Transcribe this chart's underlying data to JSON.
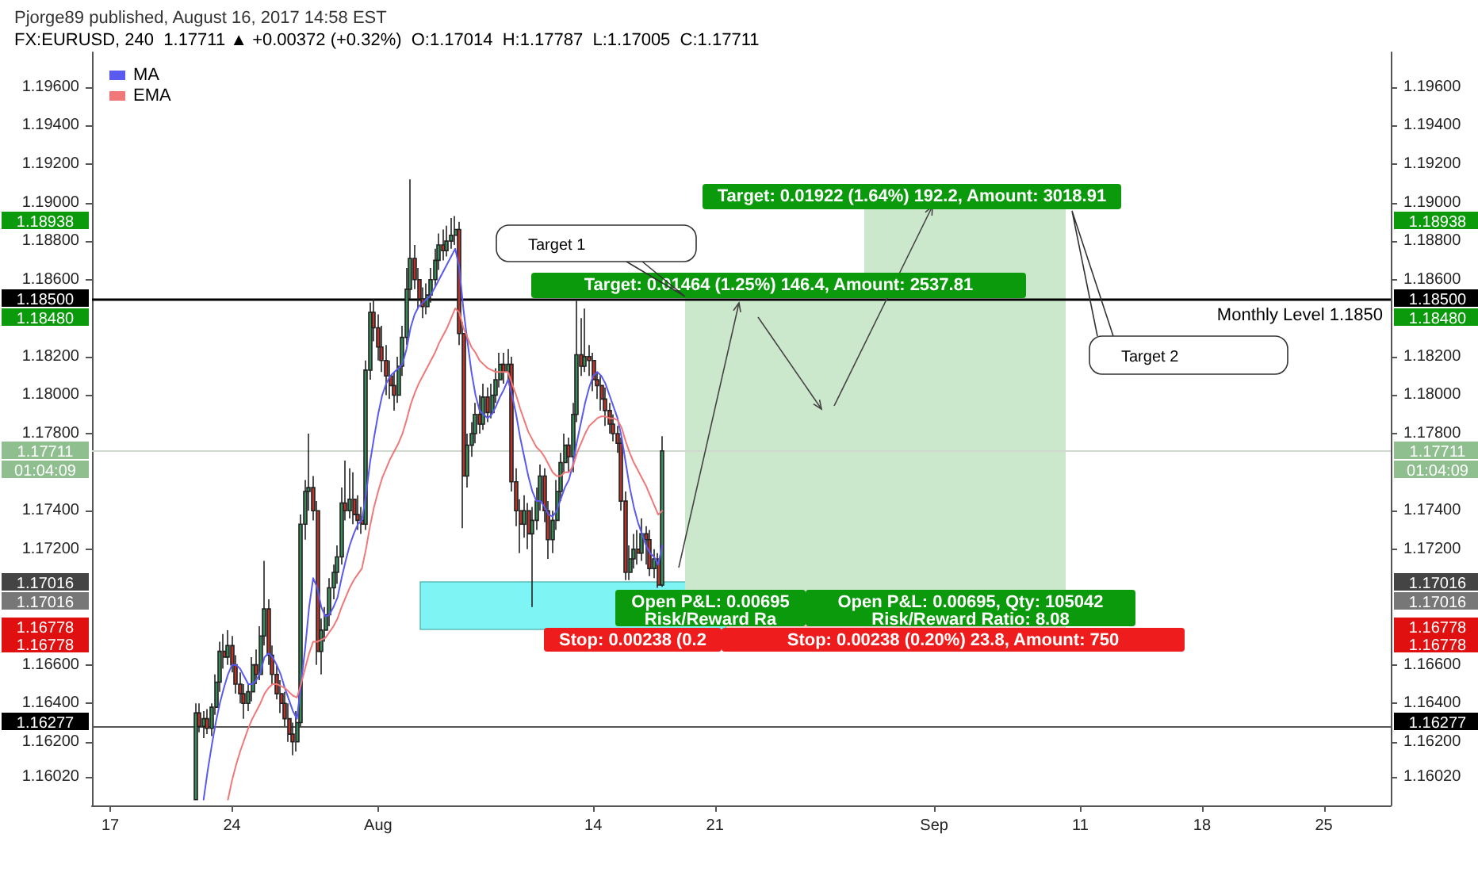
{
  "chart_data": {
    "type": "candlestick",
    "title": "Pjorge89 published, August 16, 2017 14:58 EST",
    "subtitle": "FX:EURUSD, 240  1.17711 ▲ +0.00372 (+0.32%)  O:1.17014  H:1.17787  L:1.17005  C:1.17711",
    "categories": [
      null,
      null,
      null,
      null,
      "17",
      null,
      null,
      null,
      null,
      null,
      null,
      null,
      null,
      null,
      null,
      null,
      null,
      null,
      null,
      null,
      null,
      null,
      null,
      null,
      null,
      null,
      null,
      null,
      null,
      null,
      null,
      null,
      null,
      null,
      "24",
      null,
      null,
      null,
      null,
      null,
      null,
      null,
      null,
      null,
      null,
      null,
      null,
      null,
      null,
      null,
      null,
      null,
      null,
      null,
      null,
      null,
      null,
      null,
      null,
      null,
      null,
      null,
      null,
      null,
      null,
      null,
      null,
      null,
      null,
      null,
      "Aug",
      null,
      null,
      null,
      null,
      null,
      null,
      null,
      null,
      null,
      null,
      null,
      null,
      null,
      null,
      null,
      null,
      null,
      null,
      null,
      null,
      null,
      null,
      null,
      null,
      null,
      null,
      null,
      null,
      null,
      null,
      null,
      null,
      null,
      null,
      null,
      null,
      null,
      null,
      null,
      null,
      null,
      null,
      null,
      null,
      null,
      null,
      null,
      null,
      null,
      null,
      null,
      null,
      "14",
      null,
      null,
      null,
      null,
      null,
      null,
      null,
      null,
      null,
      null,
      null,
      null,
      null,
      null,
      null,
      null,
      null,
      null,
      null,
      null,
      null,
      null,
      null,
      null,
      null,
      null,
      null,
      null,
      null,
      "21",
      null,
      null,
      null,
      null,
      null,
      null,
      null,
      null,
      null,
      null,
      null,
      null,
      null,
      null,
      null,
      null,
      null,
      null,
      null,
      null,
      null,
      null,
      null,
      null,
      null,
      null,
      null,
      null,
      null,
      null,
      null,
      null,
      null,
      null,
      null,
      null,
      null,
      null,
      null,
      null,
      null,
      null,
      null,
      null,
      null,
      null,
      null,
      null,
      null,
      null,
      null,
      null,
      null,
      "Sep",
      null,
      null,
      null,
      null,
      null,
      null,
      null,
      null,
      null,
      null,
      null,
      null,
      null,
      null,
      null,
      null,
      null,
      null,
      null,
      null,
      null,
      null,
      null,
      null,
      null,
      null,
      null,
      null,
      null,
      null,
      null,
      null,
      null,
      null,
      null,
      "11",
      null,
      null,
      null,
      null,
      null,
      null,
      null,
      null,
      null,
      null,
      null,
      null,
      null,
      null,
      null,
      null,
      null,
      null,
      null,
      null,
      null,
      null,
      null,
      null,
      null,
      null,
      null,
      null,
      null,
      "18",
      null,
      null,
      null,
      null,
      null,
      null,
      null,
      null,
      null,
      null,
      null,
      null,
      null,
      null,
      null,
      null,
      null,
      null,
      null,
      null,
      null,
      null,
      null,
      null,
      null,
      null,
      null,
      null,
      null,
      "25",
      null,
      null,
      null,
      null,
      null,
      null,
      null,
      null,
      null,
      null,
      null,
      null,
      null,
      null,
      null,
      null
    ],
    "ohlc": [
      null,
      null,
      null,
      null,
      null,
      null,
      null,
      null,
      null,
      null,
      null,
      null,
      null,
      null,
      null,
      null,
      null,
      null,
      null,
      null,
      null,
      null,
      null,
      null,
      null,
      [
        1.159,
        1.164,
        1.159,
        1.1635
      ],
      [
        1.1635,
        1.164,
        1.1625,
        1.1628
      ],
      [
        1.1628,
        1.1636,
        1.1622,
        1.1632
      ],
      [
        1.1632,
        1.1637,
        1.1624,
        1.1627
      ],
      [
        1.1627,
        1.164,
        1.1623,
        1.1638
      ],
      [
        1.1638,
        1.1655,
        1.1634,
        1.1651
      ],
      [
        1.1651,
        1.1672,
        1.1646,
        1.1667
      ],
      [
        1.1667,
        1.1676,
        1.1658,
        1.1664
      ],
      [
        1.1664,
        1.1678,
        1.166,
        1.167
      ],
      [
        1.167,
        1.1675,
        1.1656,
        1.166
      ],
      [
        1.166,
        1.1665,
        1.1645,
        1.165
      ],
      [
        1.165,
        1.1656,
        1.164,
        1.1645
      ],
      [
        1.1645,
        1.165,
        1.1632,
        1.164
      ],
      [
        1.164,
        1.165,
        1.1636,
        1.1646
      ],
      [
        1.1646,
        1.1664,
        1.1641,
        1.166
      ],
      [
        1.166,
        1.1668,
        1.165,
        1.1655
      ],
      [
        1.1655,
        1.168,
        1.1652,
        1.1675
      ],
      [
        1.1675,
        1.1714,
        1.167,
        1.1689
      ],
      [
        1.1689,
        1.1694,
        1.166,
        1.1665
      ],
      [
        1.1665,
        1.167,
        1.165,
        1.1655
      ],
      [
        1.1655,
        1.166,
        1.1642,
        1.1645
      ],
      [
        1.1645,
        1.1652,
        1.1635,
        1.164
      ],
      [
        1.164,
        1.1646,
        1.1628,
        1.1632
      ],
      [
        1.1632,
        1.164,
        1.162,
        1.1624
      ],
      [
        1.1624,
        1.163,
        1.1613,
        1.162
      ],
      [
        1.162,
        1.1636,
        1.1615,
        1.163
      ],
      [
        1.163,
        1.1738,
        1.1628,
        1.1733
      ],
      [
        1.1733,
        1.1756,
        1.1725,
        1.175
      ],
      [
        1.175,
        1.178,
        1.174,
        1.1752
      ],
      [
        1.1752,
        1.1758,
        1.1735,
        1.174
      ],
      [
        1.174,
        1.1745,
        1.166,
        1.1667
      ],
      [
        1.1667,
        1.1684,
        1.1655,
        1.1678
      ],
      [
        1.1678,
        1.169,
        1.1672,
        1.1686
      ],
      [
        1.1686,
        1.1705,
        1.168,
        1.17
      ],
      [
        1.17,
        1.1712,
        1.1694,
        1.1708
      ],
      [
        1.1708,
        1.1722,
        1.1702,
        1.1716
      ],
      [
        1.1716,
        1.1752,
        1.1712,
        1.1744
      ],
      [
        1.1744,
        1.1766,
        1.1735,
        1.174
      ],
      [
        1.174,
        1.1762,
        1.1736,
        1.1746
      ],
      [
        1.1746,
        1.176,
        1.1733,
        1.1738
      ],
      [
        1.1738,
        1.1748,
        1.173,
        1.1735
      ],
      [
        1.1735,
        1.1742,
        1.1728,
        1.1733
      ],
      [
        1.1733,
        1.1818,
        1.173,
        1.1813
      ],
      [
        1.1813,
        1.1848,
        1.1808,
        1.1843
      ],
      [
        1.1843,
        1.185,
        1.1828,
        1.1835
      ],
      [
        1.1835,
        1.1842,
        1.1818,
        1.1825
      ],
      [
        1.1825,
        1.1836,
        1.1812,
        1.1818
      ],
      [
        1.1818,
        1.1826,
        1.18,
        1.181
      ],
      [
        1.181,
        1.1818,
        1.1798,
        1.1805
      ],
      [
        1.1805,
        1.1812,
        1.1792,
        1.18
      ],
      [
        1.18,
        1.182,
        1.1796,
        1.1815
      ],
      [
        1.1815,
        1.1836,
        1.181,
        1.183
      ],
      [
        1.183,
        1.1866,
        1.1826,
        1.1855
      ],
      [
        1.1855,
        1.1912,
        1.185,
        1.1871
      ],
      [
        1.1871,
        1.1878,
        1.1855,
        1.186
      ],
      [
        1.186,
        1.1866,
        1.1845,
        1.185
      ],
      [
        1.185,
        1.1856,
        1.184,
        1.1846
      ],
      [
        1.1846,
        1.1858,
        1.1842,
        1.1852
      ],
      [
        1.1852,
        1.1866,
        1.1848,
        1.186
      ],
      [
        1.186,
        1.1876,
        1.1856,
        1.187
      ],
      [
        1.187,
        1.1884,
        1.1865,
        1.1878
      ],
      [
        1.1878,
        1.1886,
        1.187,
        1.1875
      ],
      [
        1.1875,
        1.1888,
        1.1872,
        1.188
      ],
      [
        1.188,
        1.1892,
        1.1876,
        1.1883
      ],
      [
        1.1883,
        1.1893,
        1.1878,
        1.1886
      ],
      [
        1.1886,
        1.189,
        1.1826,
        1.1832
      ],
      [
        1.1832,
        1.1838,
        1.1731,
        1.1758
      ],
      [
        1.1758,
        1.178,
        1.1752,
        1.1774
      ],
      [
        1.1774,
        1.1786,
        1.1768,
        1.178
      ],
      [
        1.178,
        1.1796,
        1.1775,
        1.179
      ],
      [
        1.179,
        1.18,
        1.178,
        1.1785
      ],
      [
        1.1785,
        1.1806,
        1.1782,
        1.1799
      ],
      [
        1.1799,
        1.1804,
        1.1786,
        1.1791
      ],
      [
        1.1791,
        1.1806,
        1.1788,
        1.18
      ],
      [
        1.18,
        1.1814,
        1.1796,
        1.1808
      ],
      [
        1.1808,
        1.1822,
        1.1804,
        1.1816
      ],
      [
        1.1816,
        1.1822,
        1.1806,
        1.1812
      ],
      [
        1.1812,
        1.1824,
        1.1808,
        1.1816
      ],
      [
        1.1816,
        1.182,
        1.175,
        1.1755
      ],
      [
        1.1755,
        1.1762,
        1.1732,
        1.174
      ],
      [
        1.174,
        1.1746,
        1.1718,
        1.1733
      ],
      [
        1.1733,
        1.1748,
        1.1726,
        1.174
      ],
      [
        1.174,
        1.1744,
        1.172,
        1.1728
      ],
      [
        1.1728,
        1.1742,
        1.169,
        1.1735
      ],
      [
        1.1735,
        1.1752,
        1.173,
        1.1745
      ],
      [
        1.1745,
        1.1764,
        1.174,
        1.1758
      ],
      [
        1.1758,
        1.1762,
        1.1734,
        1.174
      ],
      [
        1.174,
        1.1745,
        1.1715,
        1.1725
      ],
      [
        1.1725,
        1.174,
        1.1718,
        1.1735
      ],
      [
        1.1735,
        1.1756,
        1.173,
        1.175
      ],
      [
        1.175,
        1.177,
        1.1745,
        1.1765
      ],
      [
        1.1765,
        1.178,
        1.176,
        1.1774
      ],
      [
        1.1774,
        1.1778,
        1.176,
        1.1768
      ],
      [
        1.1768,
        1.1796,
        1.176,
        1.179
      ],
      [
        1.179,
        1.1849,
        1.1786,
        1.1821
      ],
      [
        1.1821,
        1.184,
        1.181,
        1.1815
      ],
      [
        1.1815,
        1.1845,
        1.1812,
        1.182
      ],
      [
        1.182,
        1.1826,
        1.181,
        1.1818
      ],
      [
        1.1818,
        1.1822,
        1.1802,
        1.1808
      ],
      [
        1.1808,
        1.1812,
        1.1798,
        1.1805
      ],
      [
        1.1805,
        1.181,
        1.1792,
        1.1798
      ],
      [
        1.1798,
        1.1804,
        1.1784,
        1.1792
      ],
      [
        1.1792,
        1.1796,
        1.178,
        1.1785
      ],
      [
        1.1785,
        1.179,
        1.1776,
        1.178
      ],
      [
        1.178,
        1.1784,
        1.177,
        1.1775
      ],
      [
        1.1775,
        1.1778,
        1.174,
        1.1745
      ],
      [
        1.1745,
        1.175,
        1.1704,
        1.1708
      ],
      [
        1.1708,
        1.1722,
        1.1704,
        1.1715
      ],
      [
        1.1715,
        1.1728,
        1.171,
        1.172
      ],
      [
        1.172,
        1.173,
        1.1712,
        1.1718
      ],
      [
        1.1718,
        1.1736,
        1.1714,
        1.1728
      ],
      [
        1.1728,
        1.1732,
        1.1712,
        1.1725
      ],
      [
        1.1725,
        1.173,
        1.1706,
        1.171
      ],
      [
        1.171,
        1.172,
        1.1705,
        1.1715
      ],
      [
        1.1715,
        1.1718,
        1.17,
        1.17014
      ],
      [
        1.17014,
        1.17787,
        1.17005,
        1.17711
      ],
      null,
      null,
      null,
      null,
      null,
      null,
      null,
      null,
      null,
      null,
      null,
      null,
      null,
      null,
      null,
      null,
      null,
      null,
      null,
      null,
      null,
      null,
      null,
      null,
      null,
      null,
      null,
      null,
      null,
      null,
      null,
      null,
      null,
      null,
      null,
      null,
      null,
      null,
      null,
      null,
      null,
      null,
      null,
      null,
      null,
      null,
      null,
      null,
      null,
      null,
      null,
      null,
      null,
      null,
      null,
      null,
      null,
      null,
      null,
      null,
      null,
      null,
      null,
      null,
      null,
      null,
      null,
      null,
      null,
      null,
      null,
      null,
      null,
      null,
      null,
      null,
      null,
      null,
      null,
      null,
      null,
      null,
      null,
      null,
      null,
      null,
      null,
      null,
      null,
      null,
      null,
      null,
      null,
      null,
      null,
      null,
      null,
      null,
      null,
      null,
      null,
      null,
      null,
      null,
      null,
      null,
      null,
      null,
      null,
      null,
      null,
      null,
      null,
      null,
      null,
      null,
      null,
      null,
      null,
      null,
      null,
      null,
      null,
      null,
      null,
      null,
      null,
      null,
      null,
      null,
      null,
      null,
      null,
      null,
      null,
      null,
      null,
      null,
      null,
      null,
      null,
      null,
      null,
      null,
      null,
      null,
      null,
      null,
      null,
      null,
      null,
      null,
      null,
      null,
      null,
      null,
      null,
      null,
      null,
      null,
      null,
      null,
      null,
      null,
      null,
      null,
      null,
      null,
      null,
      null,
      null,
      null,
      null,
      null,
      null,
      null,
      null,
      null,
      null
    ],
    "series": [
      {
        "type": "line",
        "name": "MA",
        "color": "#5a5af0",
        "values": [
          null,
          null,
          null,
          null,
          null,
          null,
          null,
          null,
          null,
          null,
          null,
          null,
          null,
          null,
          null,
          null,
          null,
          null,
          null,
          null,
          null,
          null,
          null,
          null,
          null,
          null,
          null,
          1.159,
          1.1605,
          1.1618,
          1.163,
          1.164,
          1.1648,
          1.1655,
          1.166,
          1.166,
          1.1658,
          1.1654,
          1.165,
          1.165,
          1.1652,
          1.1656,
          1.1664,
          1.1666,
          1.1664,
          1.166,
          1.1655,
          1.1648,
          1.1642,
          1.1636,
          1.1632,
          1.165,
          1.1668,
          1.169,
          1.1705,
          1.17,
          1.169,
          1.1685,
          1.1686,
          1.169,
          1.1695,
          1.1705,
          1.1714,
          1.1722,
          1.1728,
          1.1733,
          1.1735,
          1.1748,
          1.1765,
          1.1778,
          1.179,
          1.18,
          1.1806,
          1.181,
          1.1812,
          1.1814,
          1.1816,
          1.1824,
          1.1835,
          1.1842,
          1.1846,
          1.1848,
          1.185,
          1.1852,
          1.1856,
          1.186,
          1.1864,
          1.1868,
          1.1872,
          1.1876,
          1.1866,
          1.1845,
          1.1828,
          1.1812,
          1.18,
          1.1792,
          1.179,
          1.1788,
          1.179,
          1.1794,
          1.1799,
          1.1803,
          1.1808,
          1.18,
          1.179,
          1.1778,
          1.1768,
          1.1758,
          1.175,
          1.1745,
          1.1745,
          1.1742,
          1.1738,
          1.1737,
          1.174,
          1.1746,
          1.1752,
          1.1756,
          1.1764,
          1.1776,
          1.1786,
          1.1796,
          1.1804,
          1.181,
          1.1812,
          1.181,
          1.1806,
          1.18,
          1.1794,
          1.1788,
          1.1778,
          1.1765,
          1.1752,
          1.1742,
          1.1734,
          1.1728,
          1.1722,
          1.1718,
          1.1716,
          1.1712,
          1.1722,
          null,
          null,
          null,
          null,
          null,
          null,
          null,
          null,
          null,
          null,
          null,
          null,
          null,
          null,
          null,
          null,
          null,
          null,
          null,
          null,
          null,
          null,
          null,
          null,
          null,
          null,
          null,
          null,
          null,
          null,
          null,
          null,
          null,
          null,
          null,
          null,
          null,
          null,
          null,
          null,
          null,
          null,
          null,
          null,
          null,
          null,
          null,
          null,
          null,
          null,
          null,
          null,
          null,
          null,
          null,
          null,
          null,
          null,
          null,
          null,
          null,
          null,
          null,
          null,
          null,
          null,
          null,
          null,
          null,
          null,
          null,
          null,
          null,
          null,
          null,
          null,
          null,
          null,
          null,
          null,
          null,
          null,
          null,
          null,
          null,
          null,
          null,
          null,
          null,
          null,
          null,
          null,
          null,
          null,
          null,
          null,
          null,
          null,
          null,
          null,
          null,
          null,
          null,
          null,
          null,
          null,
          null,
          null,
          null,
          null,
          null,
          null,
          null,
          null,
          null,
          null,
          null,
          null,
          null,
          null,
          null,
          null,
          null,
          null,
          null,
          null,
          null,
          null,
          null,
          null,
          null,
          null,
          null,
          null,
          null,
          null,
          null,
          null,
          null,
          null,
          null,
          null,
          null,
          null,
          null,
          null,
          null,
          null,
          null,
          null,
          null,
          null,
          null,
          null,
          null,
          null,
          null,
          null,
          null,
          null,
          null,
          null,
          null,
          null,
          null,
          null,
          null,
          null,
          null,
          null,
          null,
          null,
          null,
          null,
          null,
          null,
          null,
          null,
          null
        ]
      },
      {
        "type": "line",
        "name": "EMA",
        "color": "#f07878",
        "values": [
          null,
          null,
          null,
          null,
          null,
          null,
          null,
          null,
          null,
          null,
          null,
          null,
          null,
          null,
          null,
          null,
          null,
          null,
          null,
          null,
          null,
          null,
          null,
          null,
          null,
          null,
          null,
          null,
          null,
          null,
          null,
          null,
          null,
          1.159,
          1.16,
          1.1608,
          1.1615,
          1.1621,
          1.1627,
          1.1632,
          1.1636,
          1.164,
          1.1645,
          1.1648,
          1.165,
          1.165,
          1.1649,
          1.1648,
          1.1646,
          1.1644,
          1.1643,
          1.165,
          1.1658,
          1.1666,
          1.1672,
          1.1672,
          1.1673,
          1.1674,
          1.1677,
          1.168,
          1.1684,
          1.169,
          1.1695,
          1.17,
          1.1704,
          1.1707,
          1.171,
          1.172,
          1.1732,
          1.1742,
          1.175,
          1.1757,
          1.1762,
          1.1767,
          1.1771,
          1.1775,
          1.178,
          1.1787,
          1.1795,
          1.1801,
          1.1806,
          1.181,
          1.1814,
          1.1818,
          1.1822,
          1.1827,
          1.1831,
          1.1835,
          1.184,
          1.1845,
          1.1843,
          1.1835,
          1.183,
          1.1825,
          1.1822,
          1.1818,
          1.1816,
          1.1814,
          1.1813,
          1.1812,
          1.1812,
          1.1812,
          1.1812,
          1.1806,
          1.18,
          1.1793,
          1.1787,
          1.1781,
          1.1777,
          1.1773,
          1.1771,
          1.1768,
          1.1764,
          1.176,
          1.1758,
          1.1758,
          1.176,
          1.176,
          1.1763,
          1.177,
          1.1775,
          1.178,
          1.1784,
          1.1786,
          1.1788,
          1.1789,
          1.1789,
          1.1788,
          1.1788,
          1.1787,
          1.1783,
          1.1776,
          1.177,
          1.1765,
          1.1761,
          1.1757,
          1.1753,
          1.1748,
          1.1743,
          1.1738,
          1.174,
          null,
          null,
          null,
          null,
          null,
          null,
          null,
          null,
          null,
          null,
          null,
          null,
          null,
          null,
          null,
          null,
          null,
          null,
          null,
          null,
          null,
          null,
          null,
          null,
          null,
          null,
          null,
          null,
          null,
          null,
          null,
          null,
          null,
          null,
          null,
          null,
          null,
          null,
          null,
          null,
          null,
          null,
          null,
          null,
          null,
          null,
          null,
          null,
          null,
          null,
          null,
          null,
          null,
          null,
          null,
          null,
          null,
          null,
          null,
          null,
          null,
          null,
          null,
          null,
          null,
          null,
          null,
          null,
          null,
          null,
          null,
          null,
          null,
          null,
          null,
          null,
          null,
          null,
          null,
          null,
          null,
          null,
          null,
          null,
          null,
          null,
          null,
          null,
          null,
          null,
          null,
          null,
          null,
          null,
          null,
          null,
          null,
          null,
          null,
          null,
          null,
          null,
          null,
          null,
          null,
          null,
          null,
          null,
          null,
          null,
          null,
          null,
          null,
          null,
          null,
          null,
          null,
          null,
          null,
          null,
          null,
          null,
          null,
          null,
          null,
          null,
          null,
          null,
          null,
          null,
          null,
          null,
          null,
          null,
          null,
          null,
          null,
          null,
          null,
          null,
          null,
          null,
          null,
          null,
          null,
          null,
          null,
          null,
          null,
          null,
          null,
          null,
          null,
          null,
          null,
          null,
          null,
          null,
          null,
          null,
          null,
          null,
          null,
          null,
          null,
          null,
          null,
          null,
          null,
          null,
          null,
          null,
          null,
          null,
          null,
          null,
          null,
          null,
          null
        ]
      }
    ],
    "ylim": [
      1.1587,
      1.1978
    ],
    "yticks": [
      {
        "value": 1.1602,
        "label": "1.16020"
      },
      {
        "value": 1.162,
        "label": "1.16200"
      },
      {
        "value": 1.164,
        "label": "1.16400"
      },
      {
        "value": 1.166,
        "label": "1.16600"
      },
      {
        "value": 1.172,
        "label": "1.17200"
      },
      {
        "value": 1.174,
        "label": "1.17400"
      },
      {
        "value": 1.178,
        "label": "1.17800"
      },
      {
        "value": 1.18,
        "label": "1.18000"
      },
      {
        "value": 1.182,
        "label": "1.18200"
      },
      {
        "value": 1.186,
        "label": "1.18600"
      },
      {
        "value": 1.188,
        "label": "1.18800"
      },
      {
        "value": 1.19,
        "label": "1.19000"
      },
      {
        "value": 1.192,
        "label": "1.19200"
      },
      {
        "value": 1.194,
        "label": "1.19400"
      },
      {
        "value": 1.196,
        "label": "1.19600"
      }
    ],
    "y2lim": [
      1.1587,
      1.1978
    ],
    "y2ticks": [
      {
        "value": 1.1602,
        "label": "1.16020"
      },
      {
        "value": 1.162,
        "label": "1.16200"
      },
      {
        "value": 1.164,
        "label": "1.16400"
      },
      {
        "value": 1.166,
        "label": "1.16600"
      },
      {
        "value": 1.172,
        "label": "1.17200"
      },
      {
        "value": 1.174,
        "label": "1.17400"
      },
      {
        "value": 1.178,
        "label": "1.17800"
      },
      {
        "value": 1.18,
        "label": "1.18000"
      },
      {
        "value": 1.182,
        "label": "1.18200"
      },
      {
        "value": 1.186,
        "label": "1.18600"
      },
      {
        "value": 1.188,
        "label": "1.18800"
      },
      {
        "value": 1.19,
        "label": "1.19000"
      },
      {
        "value": 1.192,
        "label": "1.19200"
      },
      {
        "value": 1.194,
        "label": "1.19400"
      },
      {
        "value": 1.196,
        "label": "1.19600"
      }
    ],
    "ref_lines": [
      {
        "axis": "y",
        "value": 1.185,
        "label": "Monthly Level 1.1850",
        "color": "#000000"
      },
      {
        "axis": "y",
        "value": 1.16277,
        "color": "#555555"
      },
      {
        "axis": "y",
        "value": 1.17711,
        "color": "#cfd8cf"
      }
    ],
    "annotations": [
      "Target: 0.01464 (1.25%) 146.4, Amount: 2537.81",
      "Target: 0.01922 (1.64%) 192.2, Amount: 3018.91",
      "Open P&L: 0.00695\nRisk/Reward Ra",
      "Open P&L: 0.00695, Qty: 105042\nRisk/Reward Ratio: 8.08",
      "Stop: 0.00238 (0.2",
      "Stop: 0.00238 (0.20%) 23.8, Amount: 750",
      "Target 1",
      "Target 2",
      "01:04:09",
      "1.18938",
      "1.18500",
      "1.18480",
      "1.17711",
      "1.17016",
      "1.17016",
      "1.16778",
      "1.16778",
      "1.16277"
    ],
    "legend": "top left",
    "grid": false,
    "marker": "none",
    "line_style": "solid"
  }
}
